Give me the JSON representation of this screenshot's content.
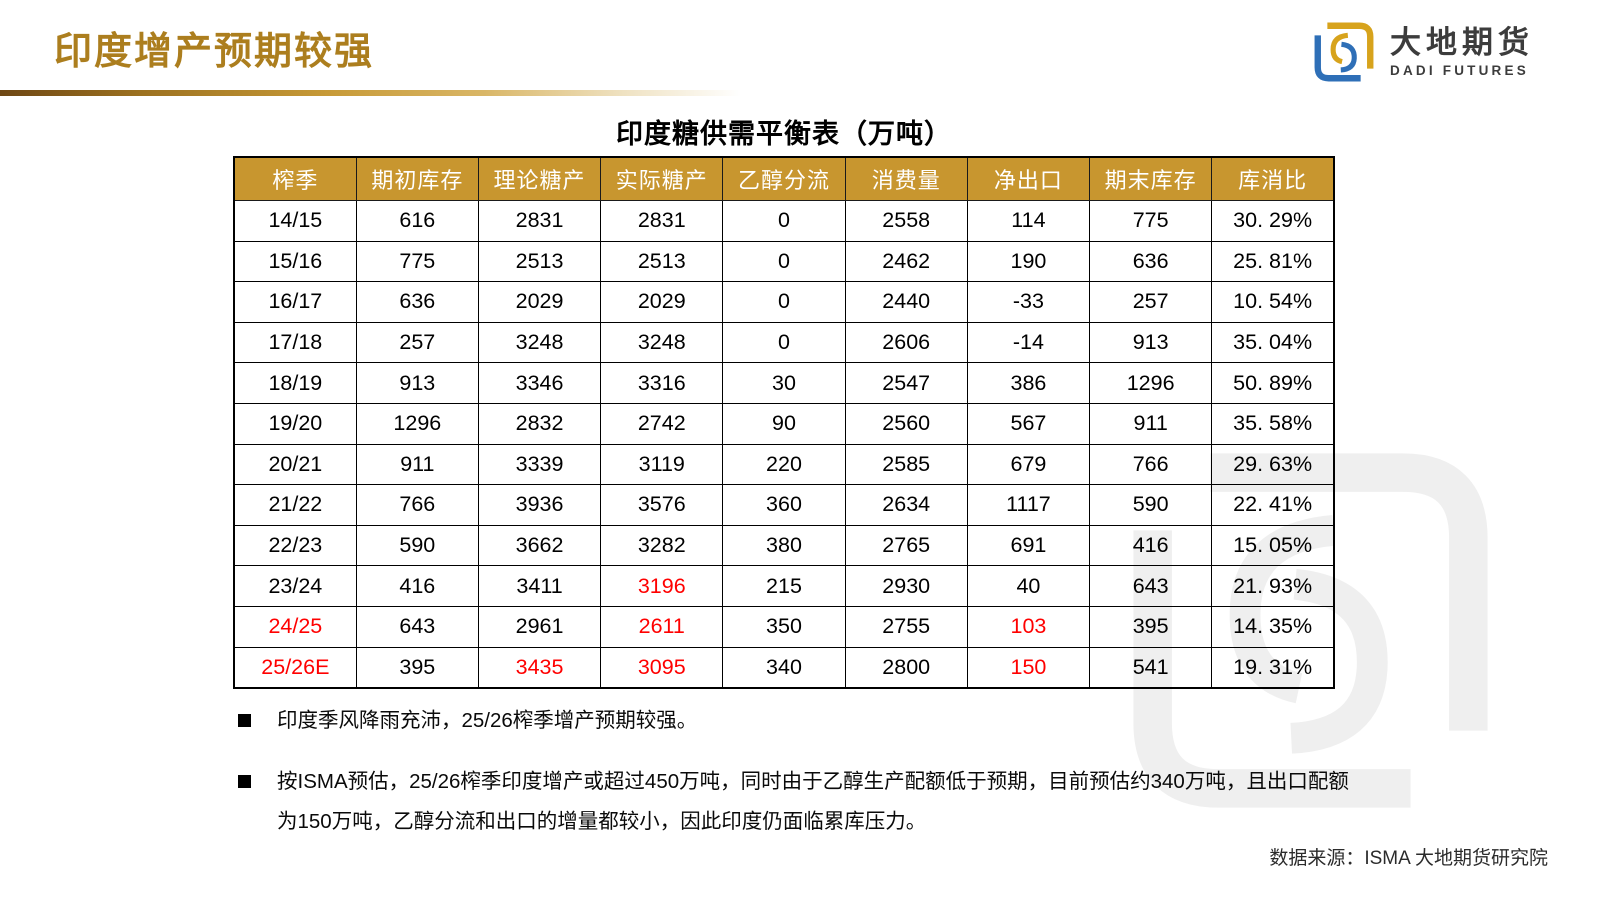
{
  "page": {
    "title": "印度增产预期较强",
    "source": "数据来源：ISMA 大地期货研究院"
  },
  "brand": {
    "name_cn": "大地期货",
    "name_en": "DADI FUTURES",
    "logo_icon": "dadi-interlocked-square",
    "logo_blue": "#2E6FB7",
    "logo_gold": "#D7A31C"
  },
  "table": {
    "title": "印度糖供需平衡表（万吨）",
    "header_bg": "#C8962F",
    "highlight_color": "#FF0000",
    "columns": [
      "榨季",
      "期初库存",
      "理论糖产",
      "实际糖产",
      "乙醇分流",
      "消费量",
      "净出口",
      "期末库存",
      "库消比"
    ],
    "rows": [
      {
        "cells": [
          "14/15",
          "616",
          "2831",
          "2831",
          "0",
          "2558",
          "114",
          "775",
          "30. 29%"
        ],
        "red": []
      },
      {
        "cells": [
          "15/16",
          "775",
          "2513",
          "2513",
          "0",
          "2462",
          "190",
          "636",
          "25. 81%"
        ],
        "red": []
      },
      {
        "cells": [
          "16/17",
          "636",
          "2029",
          "2029",
          "0",
          "2440",
          "-33",
          "257",
          "10. 54%"
        ],
        "red": []
      },
      {
        "cells": [
          "17/18",
          "257",
          "3248",
          "3248",
          "0",
          "2606",
          "-14",
          "913",
          "35. 04%"
        ],
        "red": []
      },
      {
        "cells": [
          "18/19",
          "913",
          "3346",
          "3316",
          "30",
          "2547",
          "386",
          "1296",
          "50. 89%"
        ],
        "red": []
      },
      {
        "cells": [
          "19/20",
          "1296",
          "2832",
          "2742",
          "90",
          "2560",
          "567",
          "911",
          "35. 58%"
        ],
        "red": []
      },
      {
        "cells": [
          "20/21",
          "911",
          "3339",
          "3119",
          "220",
          "2585",
          "679",
          "766",
          "29. 63%"
        ],
        "red": []
      },
      {
        "cells": [
          "21/22",
          "766",
          "3936",
          "3576",
          "360",
          "2634",
          "1117",
          "590",
          "22. 41%"
        ],
        "red": []
      },
      {
        "cells": [
          "22/23",
          "590",
          "3662",
          "3282",
          "380",
          "2765",
          "691",
          "416",
          "15. 05%"
        ],
        "red": []
      },
      {
        "cells": [
          "23/24",
          "416",
          "3411",
          "3196",
          "215",
          "2930",
          "40",
          "643",
          "21. 93%"
        ],
        "red": [
          3
        ]
      },
      {
        "cells": [
          "24/25",
          "643",
          "2961",
          "2611",
          "350",
          "2755",
          "103",
          "395",
          "14. 35%"
        ],
        "red": [
          0,
          3,
          6
        ]
      },
      {
        "cells": [
          "25/26E",
          "395",
          "3435",
          "3095",
          "340",
          "2800",
          "150",
          "541",
          "19. 31%"
        ],
        "red": [
          0,
          2,
          3,
          6
        ]
      }
    ]
  },
  "bullets": [
    {
      "lines": [
        "印度季风降雨充沛，25/26榨季增产预期较强。"
      ]
    },
    {
      "lines": [
        "按ISMA预估，25/26榨季印度增产或超过450万吨，同时由于乙醇生产配额低于预期，目前预估约340万吨，且出口配额",
        "为150万吨，乙醇分流和出口的增量都较小，因此印度仍面临累库压力。"
      ]
    }
  ],
  "colors": {
    "title_gold": "#AC7E1E",
    "header_gold": "#C8962F",
    "red": "#FF0000",
    "watermark_gray": "#EFEFEF"
  }
}
